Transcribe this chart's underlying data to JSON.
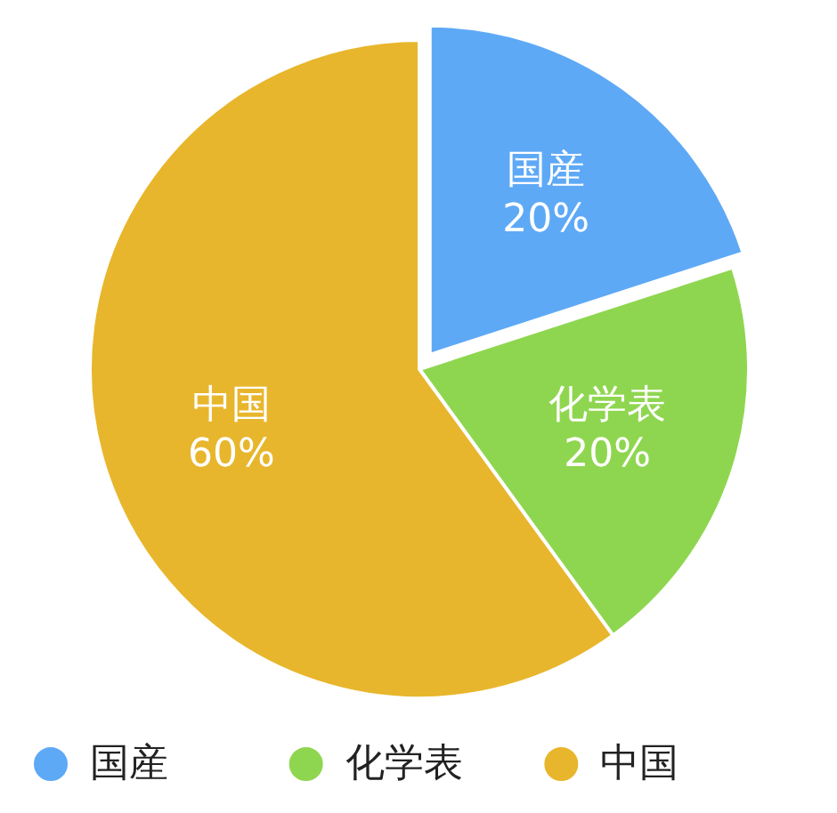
{
  "chart_data": {
    "type": "pie",
    "categories": [
      "国産",
      "化学表",
      "中国"
    ],
    "values": [
      20,
      20,
      60
    ],
    "value_labels": [
      "20%",
      "20%",
      "60%"
    ],
    "colors": [
      "#5ea9f6",
      "#8fd650",
      "#e8b62c"
    ],
    "legend": "bottom"
  }
}
